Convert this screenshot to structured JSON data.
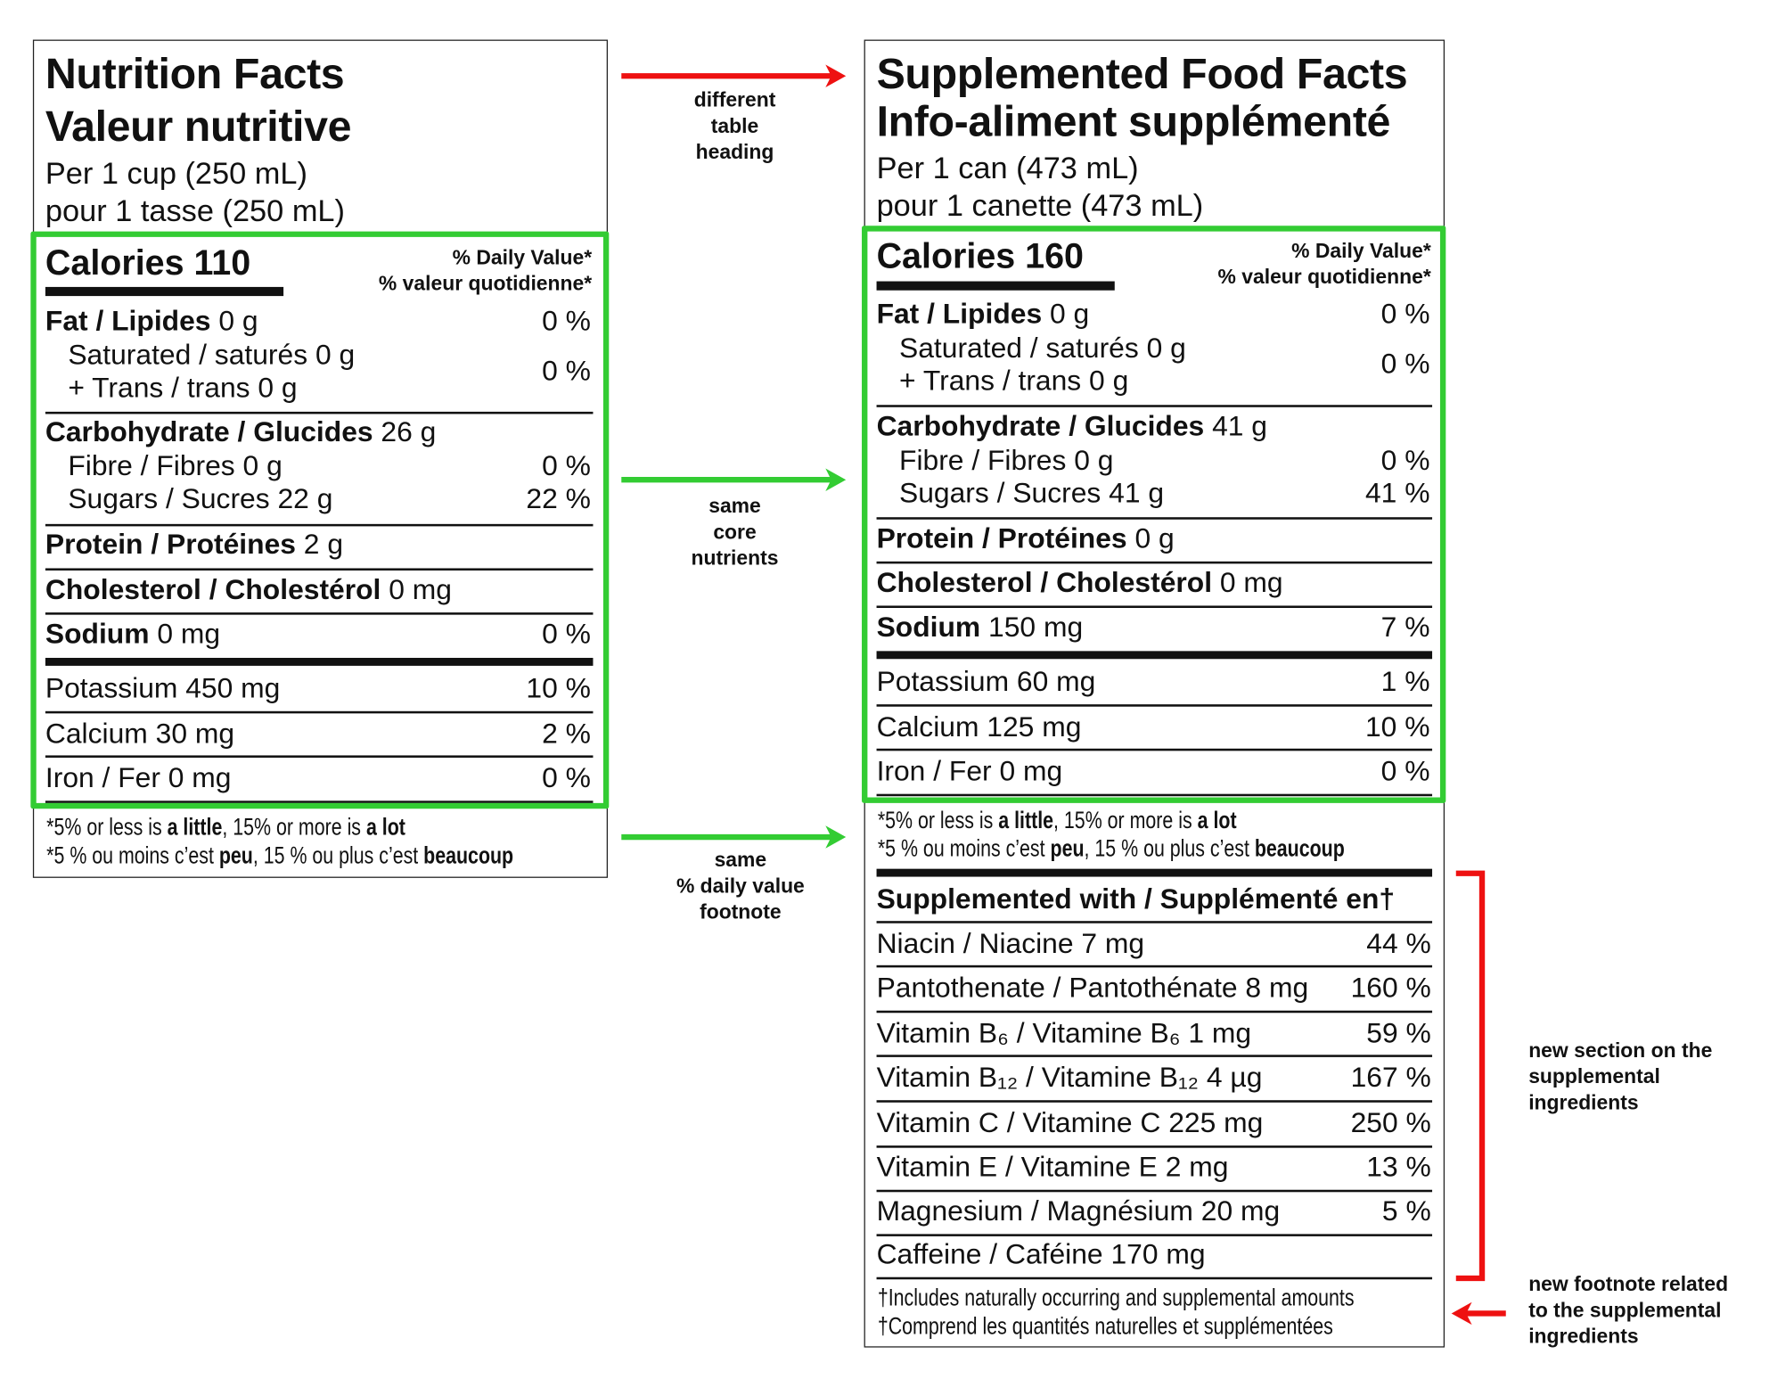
{
  "colors": {
    "highlight_green": "#33cc33",
    "annotation_red": "#ee1111",
    "text": "#111111"
  },
  "left_label": {
    "title_en": "Nutrition Facts",
    "title_fr": "Valeur nutritive",
    "serving_en": "Per 1 cup (250 mL)",
    "serving_fr": "pour 1 tasse (250 mL)",
    "calories": "Calories 110",
    "dv_header_en": "% Daily Value*",
    "dv_header_fr": "% valeur quotidienne*",
    "nutrients": [
      {
        "name": "Fat / Lipides",
        "amount": " 0 g",
        "dv": "0 %",
        "bold": true
      },
      {
        "name": "Saturated / saturés 0 g",
        "amount": "",
        "dv": "0 %",
        "sub": true
      },
      {
        "name": "+ Trans / trans 0 g",
        "amount": "",
        "dv": "",
        "sub": true
      },
      {
        "name": "Carbohydrate / Glucides",
        "amount": " 26 g",
        "dv": "",
        "bold": true
      },
      {
        "name": "Fibre / Fibres 0 g",
        "amount": "",
        "dv": "0 %",
        "sub": true
      },
      {
        "name": "Sugars / Sucres 22 g",
        "amount": "",
        "dv": "22 %",
        "sub": true
      },
      {
        "name": "Protein / Protéines",
        "amount": " 2 g",
        "dv": "",
        "bold": true
      },
      {
        "name": "Cholesterol / Cholestérol",
        "amount": " 0 mg",
        "dv": "",
        "bold": true
      },
      {
        "name": "Sodium",
        "amount": " 0 mg",
        "dv": "0 %",
        "bold": true
      },
      {
        "name": "Potassium 450 mg",
        "amount": "",
        "dv": "10 %"
      },
      {
        "name": "Calcium 30 mg",
        "amount": "",
        "dv": "2 %"
      },
      {
        "name": "Iron / Fer 0 mg",
        "amount": "",
        "dv": "0 %"
      }
    ],
    "footnote_en": [
      {
        "t": "*5% or less is "
      },
      {
        "t": "a little",
        "b": true
      },
      {
        "t": ", 15% or more is "
      },
      {
        "t": "a lot",
        "b": true
      }
    ],
    "footnote_fr": [
      {
        "t": "*5 % ou moins c’est "
      },
      {
        "t": "peu",
        "b": true
      },
      {
        "t": ", 15 % ou plus c’est "
      },
      {
        "t": "beaucoup",
        "b": true
      }
    ]
  },
  "right_label": {
    "title_en": "Supplemented Food Facts",
    "title_fr": "Info-aliment supplémenté",
    "serving_en": "Per 1 can (473  mL)",
    "serving_fr": "pour 1 canette (473 mL)",
    "calories": "Calories 160",
    "dv_header_en": "% Daily Value*",
    "dv_header_fr": "% valeur quotidienne*",
    "nutrients": [
      {
        "name": "Fat / Lipides",
        "amount": " 0 g",
        "dv": "0 %",
        "bold": true
      },
      {
        "name": "Saturated / saturés 0 g",
        "amount": "",
        "dv": "0 %",
        "sub": true
      },
      {
        "name": "+ Trans / trans 0 g",
        "amount": "",
        "dv": "",
        "sub": true
      },
      {
        "name": "Carbohydrate / Glucides",
        "amount": " 41 g",
        "dv": "",
        "bold": true
      },
      {
        "name": "Fibre / Fibres 0 g",
        "amount": "",
        "dv": "0 %",
        "sub": true
      },
      {
        "name": "Sugars / Sucres 41 g",
        "amount": "",
        "dv": "41 %",
        "sub": true
      },
      {
        "name": "Protein / Protéines",
        "amount": " 0 g",
        "dv": "",
        "bold": true
      },
      {
        "name": "Cholesterol / Cholestérol",
        "amount": " 0 mg",
        "dv": "",
        "bold": true
      },
      {
        "name": "Sodium",
        "amount": " 150 mg",
        "dv": "7 %",
        "bold": true
      },
      {
        "name": "Potassium 60 mg",
        "amount": "",
        "dv": "1 %"
      },
      {
        "name": "Calcium 125 mg",
        "amount": "",
        "dv": "10 %"
      },
      {
        "name": "Iron / Fer 0 mg",
        "amount": "",
        "dv": "0 %"
      }
    ],
    "footnote_en": [
      {
        "t": "*5% or less is "
      },
      {
        "t": "a little",
        "b": true
      },
      {
        "t": ", 15% or more is "
      },
      {
        "t": "a lot",
        "b": true
      }
    ],
    "footnote_fr": [
      {
        "t": "*5 % ou moins c’est "
      },
      {
        "t": "peu",
        "b": true
      },
      {
        "t": ", 15 % ou plus c’est "
      },
      {
        "t": "beaucoup",
        "b": true
      }
    ],
    "supplemented_header": "Supplemented with / Supplémenté en†",
    "supplements": [
      {
        "name": "Niacin / Niacine 7 mg",
        "dv": "44 %"
      },
      {
        "name": "Pantothenate / Pantothénate 8 mg",
        "dv": "160 %"
      },
      {
        "name": "Vitamin B₆ / Vitamine B₆ 1 mg",
        "dv": "59 %"
      },
      {
        "name": "Vitamin B₁₂ / Vitamine B₁₂ 4 µg",
        "dv": "167 %"
      },
      {
        "name": "Vitamin C / Vitamine C 225 mg",
        "dv": "250 %"
      },
      {
        "name": "Vitamin E / Vitamine E 2 mg",
        "dv": "13 %"
      },
      {
        "name": "Magnesium / Magnésium 20 mg",
        "dv": "5 %"
      },
      {
        "name": "Caffeine / Caféine 170 mg",
        "dv": ""
      }
    ],
    "supp_footnote_en": "†Includes naturally occurring and supplemental amounts",
    "supp_footnote_fr": "†Comprend les quantités naturelles et supplémentées"
  },
  "annotations": {
    "heading": [
      "different",
      "table",
      "heading"
    ],
    "core": [
      "same",
      "core",
      "nutrients"
    ],
    "footnote": [
      "same",
      "% daily value",
      "footnote"
    ],
    "new_section": [
      "new section on the",
      "supplemental",
      "ingredients"
    ],
    "new_footnote": [
      "new footnote related",
      "to the supplemental",
      "ingredients"
    ]
  }
}
